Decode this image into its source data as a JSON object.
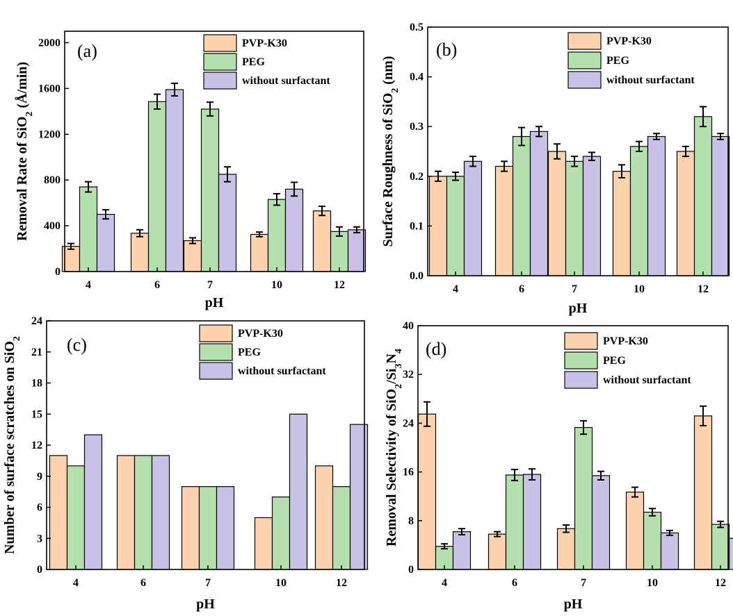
{
  "colors": {
    "PVP-K30": "#fcd3ad",
    "PEG": "#b4e0ae",
    "without surfactant": "#c9c1e6"
  },
  "chart_data": [
    {
      "id": "a",
      "type": "bar",
      "panel_label": "(a)",
      "categories": [
        "4",
        "6",
        "7",
        "10",
        "12"
      ],
      "series": [
        {
          "name": "PVP-K30",
          "values": [
            220,
            335,
            270,
            325,
            530
          ],
          "errors": [
            25,
            30,
            25,
            20,
            40
          ]
        },
        {
          "name": "PEG",
          "values": [
            740,
            1485,
            1420,
            630,
            350
          ],
          "errors": [
            45,
            65,
            60,
            50,
            40
          ]
        },
        {
          "name": "without surfactant",
          "values": [
            500,
            1590,
            850,
            720,
            365
          ],
          "errors": [
            40,
            55,
            65,
            60,
            25
          ]
        }
      ],
      "xlabel": "pH",
      "ylabel_main": "Removal Rate of SiO",
      "ylabel_sub": "2",
      "ylabel_tail": " (Å/min)",
      "ylim": [
        0,
        2100
      ],
      "yticks": [
        "0",
        "400",
        "800",
        "1200",
        "1600",
        "2000"
      ],
      "ytick_values": [
        0,
        400,
        800,
        1200,
        1600,
        2000
      ],
      "error_bars": true,
      "legend_position": "top-right"
    },
    {
      "id": "b",
      "type": "bar",
      "panel_label": "(b)",
      "categories": [
        "4",
        "6",
        "7",
        "10",
        "12"
      ],
      "series": [
        {
          "name": "PVP-K30",
          "values": [
            0.2,
            0.22,
            0.25,
            0.21,
            0.25
          ],
          "errors": [
            0.01,
            0.01,
            0.015,
            0.013,
            0.01
          ]
        },
        {
          "name": "PEG",
          "values": [
            0.2,
            0.28,
            0.23,
            0.26,
            0.32
          ],
          "errors": [
            0.008,
            0.018,
            0.01,
            0.01,
            0.02
          ]
        },
        {
          "name": "without surfactant",
          "values": [
            0.23,
            0.29,
            0.24,
            0.28,
            0.28
          ],
          "errors": [
            0.01,
            0.01,
            0.008,
            0.006,
            0.006
          ]
        }
      ],
      "xlabel": "pH",
      "ylabel_main": "Surface Roughness of SiO",
      "ylabel_sub": "2",
      "ylabel_tail": " (nm)",
      "ylim": [
        0,
        0.5
      ],
      "yticks": [
        "0.0",
        "0.1",
        "0.2",
        "0.3",
        "0.4",
        "0.5"
      ],
      "ytick_values": [
        0,
        0.1,
        0.2,
        0.3,
        0.4,
        0.5
      ],
      "error_bars": true,
      "legend_position": "top-right"
    },
    {
      "id": "c",
      "type": "bar",
      "panel_label": "(c)",
      "categories": [
        "4",
        "6",
        "7",
        "10",
        "12"
      ],
      "series": [
        {
          "name": "PVP-K30",
          "values": [
            11,
            11,
            8,
            5,
            10
          ]
        },
        {
          "name": "PEG",
          "values": [
            10,
            11,
            8,
            7,
            8
          ]
        },
        {
          "name": "without surfactant",
          "values": [
            13,
            11,
            8,
            15,
            14
          ]
        }
      ],
      "xlabel": "pH",
      "ylabel_main": "Number of surface scratches on SiO",
      "ylabel_sub": "2",
      "ylabel_tail": "",
      "ylim": [
        0,
        24
      ],
      "yticks": [
        "0",
        "3",
        "6",
        "9",
        "12",
        "15",
        "18",
        "21",
        "24"
      ],
      "ytick_values": [
        0,
        3,
        6,
        9,
        12,
        15,
        18,
        21,
        24
      ],
      "error_bars": false,
      "legend_position": "top-right"
    },
    {
      "id": "d",
      "type": "bar",
      "panel_label": "(d)",
      "categories": [
        "4",
        "6",
        "7",
        "10",
        "12"
      ],
      "series": [
        {
          "name": "PVP-K30",
          "values": [
            25.5,
            5.8,
            6.7,
            12.7,
            25.2
          ],
          "errors": [
            2.0,
            0.4,
            0.6,
            0.8,
            1.6
          ]
        },
        {
          "name": "PEG",
          "values": [
            3.8,
            15.5,
            23.3,
            9.4,
            7.4
          ],
          "errors": [
            0.4,
            0.9,
            1.1,
            0.6,
            0.5
          ]
        },
        {
          "name": "without surfactant",
          "values": [
            6.2,
            15.6,
            15.4,
            6.0,
            5.1
          ],
          "errors": [
            0.5,
            0.9,
            0.7,
            0.4,
            0.4
          ]
        }
      ],
      "xlabel": "pH",
      "ylabel_main": "Removal Selectivity of SiO",
      "ylabel_sub": "2",
      "ylabel_mid": "/Si",
      "ylabel_sub2": "3",
      "ylabel_mid2": "N",
      "ylabel_sub3": "4",
      "ylim": [
        0,
        40
      ],
      "yticks": [
        "0",
        "8",
        "16",
        "24",
        "32",
        "40"
      ],
      "ytick_values": [
        0,
        8,
        16,
        24,
        32,
        40
      ],
      "error_bars": true,
      "legend_position": "top-right"
    }
  ]
}
